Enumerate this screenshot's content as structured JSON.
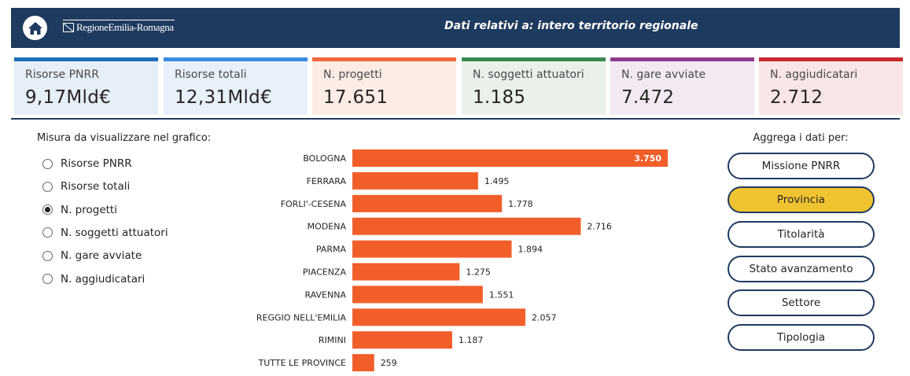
{
  "header": {
    "logo_text": "RegioneEmilia-Romagna",
    "title": "Dati relativi a: intero territorio regionale",
    "background": "#1f3a5f"
  },
  "kpis": [
    {
      "label": "Risorse PNRR",
      "value": "9,17Mld€",
      "accent": "#1f6fb8",
      "bg": "#e6eef7"
    },
    {
      "label": "Risorse totali",
      "value": "12,31Mld€",
      "accent": "#3a8be0",
      "bg": "#e8f1fb"
    },
    {
      "label": "N. progetti",
      "value": "17.651",
      "accent": "#f2683a",
      "bg": "#fdece6"
    },
    {
      "label": "N. soggetti attuatori",
      "value": "1.185",
      "accent": "#3a8a50",
      "bg": "#e9f1ea"
    },
    {
      "label": "N. gare avviate",
      "value": "7.472",
      "accent": "#8e3a8c",
      "bg": "#f3e9f2"
    },
    {
      "label": "N. aggiudicatari",
      "value": "2.712",
      "accent": "#c9272d",
      "bg": "#f9e6e6"
    }
  ],
  "measure": {
    "title": "Misura da visualizzare nel grafico:",
    "options": [
      "Risorse PNRR",
      "Risorse totali",
      "N. progetti",
      "N. soggetti attuatori",
      "N. gare avviate",
      "N. aggiudicatari"
    ],
    "selected": "N. progetti"
  },
  "aggregate": {
    "title": "Aggrega i dati per:",
    "buttons": [
      "Missione PNRR",
      "Provincia",
      "Titolarità",
      "Stato avanzamento",
      "Settore",
      "Tipologia"
    ],
    "active": "Provincia",
    "active_color": "#f0c330"
  },
  "chart_data": {
    "type": "bar",
    "orientation": "horizontal",
    "categories": [
      "BOLOGNA",
      "FERRARA",
      "FORLI'-CESENA",
      "MODENA",
      "PARMA",
      "PIACENZA",
      "RAVENNA",
      "REGGIO NELL'EMILIA",
      "RIMINI",
      "TUTTE LE PROVINCE"
    ],
    "values": [
      3750,
      1495,
      1778,
      2716,
      1894,
      1275,
      1551,
      2057,
      1187,
      259
    ],
    "value_labels": [
      "3.750",
      "1.495",
      "1.778",
      "2.716",
      "1.894",
      "1.275",
      "1.551",
      "2.057",
      "1.187",
      "259"
    ],
    "bar_color": "#f25e2a",
    "xlim": [
      0,
      3750
    ],
    "grid": false
  }
}
